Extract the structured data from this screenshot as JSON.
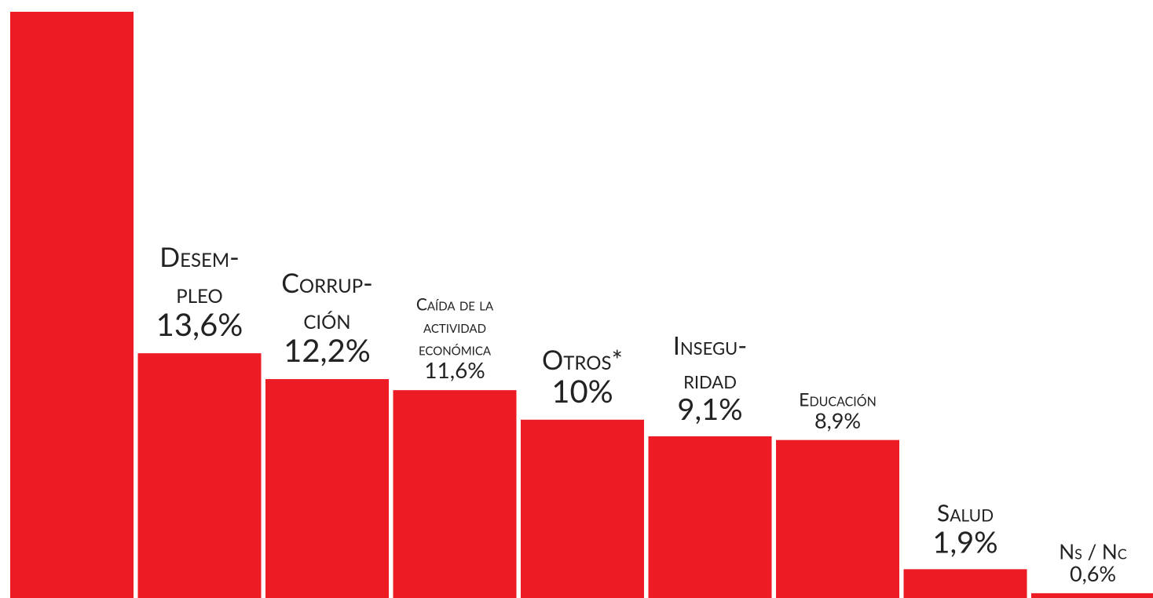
{
  "chart_data": {
    "type": "bar",
    "categories": [
      null,
      "Desem-\npleo",
      "Corrup-\nción",
      "Caída de la\nactividad\neconómica",
      "Otros*",
      "Insegu-\nridad",
      "Educación",
      "Salud",
      "Ns / Nc"
    ],
    "values": [
      32.1,
      13.6,
      12.2,
      11.6,
      10,
      9.1,
      8.9,
      1.9,
      0.6
    ],
    "value_labels": [
      null,
      "13,6%",
      "12,2%",
      "11,6%",
      "10%",
      "9,1%",
      "8,9%",
      "1,9%",
      "0,6%"
    ],
    "color": "#ed1c24",
    "ylim": [
      0,
      32.1
    ]
  }
}
